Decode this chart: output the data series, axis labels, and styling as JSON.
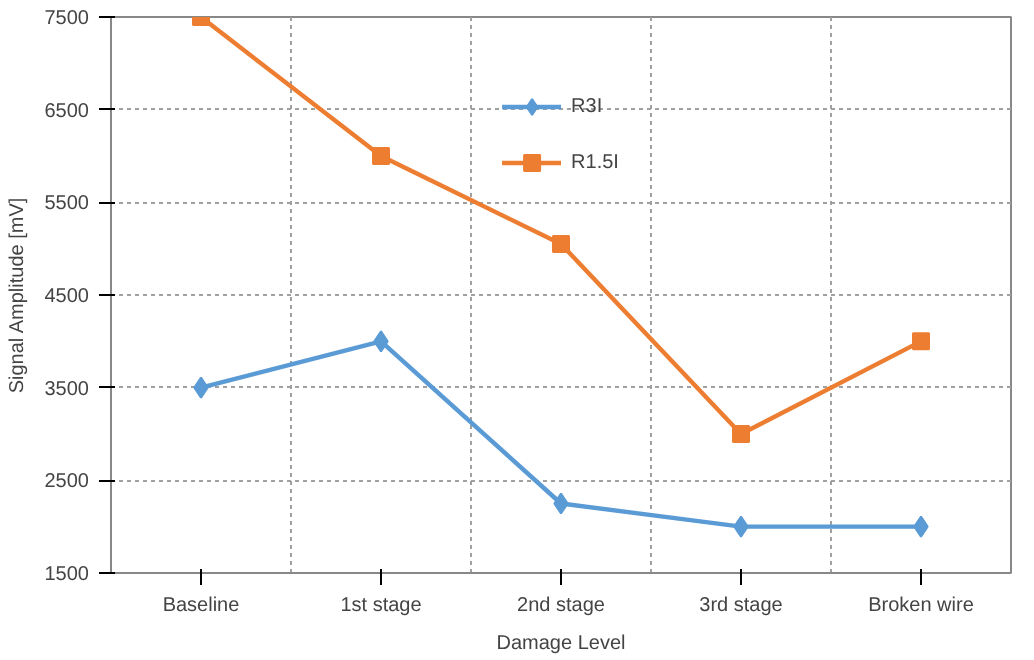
{
  "chart_data": {
    "type": "line",
    "xlabel": "Damage Level",
    "ylabel": "Signal Amplitude [mV]",
    "categories": [
      "Baseline",
      "1st stage",
      "2nd stage",
      "3rd stage",
      "Broken wire"
    ],
    "series": [
      {
        "name": "R3I",
        "color": "#5b9bd5",
        "marker": "diamond",
        "values": [
          3500,
          4000,
          2250,
          2000,
          2000
        ]
      },
      {
        "name": "R1.5I",
        "color": "#ed7d31",
        "marker": "square",
        "values": [
          7500,
          6000,
          5050,
          3000,
          4000
        ]
      }
    ],
    "ylim": [
      1500,
      7500
    ],
    "yticks": [
      1500,
      2500,
      3500,
      4500,
      5500,
      6500,
      7500
    ],
    "grid": true,
    "legend": "top",
    "line_style": "solid"
  }
}
